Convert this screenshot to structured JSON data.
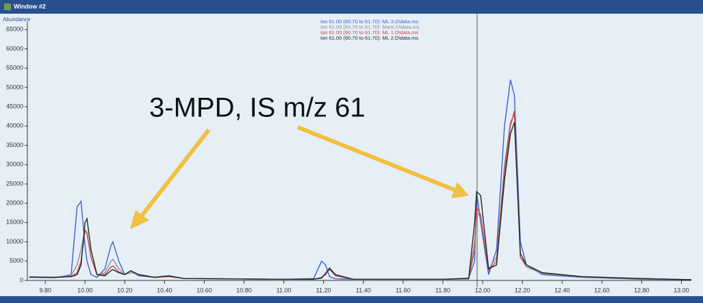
{
  "chart_data": {
    "type": "line",
    "window_title": "Window #2",
    "y_label": "Abundance",
    "annotation": "3-MPD, IS m/z 61",
    "x": [
      9.72,
      9.85,
      9.93,
      9.96,
      9.98,
      10.0,
      10.01,
      10.03,
      10.06,
      10.1,
      10.13,
      10.14,
      10.17,
      10.2,
      10.23,
      10.27,
      10.35,
      10.42,
      10.5,
      11.0,
      11.15,
      11.19,
      11.21,
      11.23,
      11.26,
      11.35,
      11.8,
      11.93,
      11.96,
      11.97,
      11.99,
      12.03,
      12.07,
      12.11,
      12.14,
      12.16,
      12.19,
      12.22,
      12.3,
      12.5,
      12.8,
      13.05
    ],
    "series": [
      {
        "name": "Ion 61.00 (60.70 to 61.70): ML 3.D\\data.ms",
        "color": "#3d5fd8",
        "values": [
          800,
          700,
          1500,
          19000,
          20500,
          9000,
          5000,
          1500,
          800,
          3000,
          9000,
          10000,
          5000,
          1500,
          2500,
          1200,
          800,
          1200,
          500,
          300,
          500,
          5000,
          4000,
          1000,
          400,
          300,
          300,
          600,
          5000,
          23000,
          15000,
          1500,
          8000,
          40000,
          52000,
          48000,
          10000,
          4000,
          1500,
          800,
          300,
          200
        ]
      },
      {
        "name": "Ion 61.00 (60.70 to 61.70): blanc.D\\data.ms",
        "color": "#8a8f98",
        "values": [
          900,
          800,
          1200,
          4000,
          8000,
          13000,
          12500,
          6000,
          1500,
          2000,
          5000,
          5500,
          3000,
          1500,
          2000,
          1500,
          800,
          1000,
          500,
          300,
          300,
          800,
          1500,
          2800,
          1200,
          300,
          300,
          500,
          10000,
          18000,
          16000,
          3000,
          6000,
          30000,
          41000,
          43000,
          6000,
          3500,
          1800,
          900,
          400,
          200
        ]
      },
      {
        "name": "Ion 61.00 (60.70 to 61.70): ML 1.D\\data.ms",
        "color": "#d0464a",
        "values": [
          900,
          800,
          1000,
          2000,
          5000,
          13000,
          12000,
          6000,
          1500,
          1500,
          3500,
          3800,
          2200,
          1500,
          2500,
          1500,
          800,
          1000,
          500,
          300,
          300,
          800,
          1500,
          3000,
          1200,
          300,
          300,
          400,
          8000,
          19000,
          17000,
          2500,
          5000,
          28000,
          40000,
          44000,
          6000,
          4000,
          2000,
          1000,
          500,
          200
        ]
      },
      {
        "name": "Ion 61.00 (60.70 to 61.70): ML 2.D\\data.ms",
        "color": "#1c2a22",
        "values": [
          900,
          800,
          1000,
          1500,
          4000,
          15000,
          16000,
          8000,
          1500,
          1200,
          2500,
          2800,
          2000,
          1500,
          2500,
          1500,
          800,
          1200,
          500,
          300,
          300,
          600,
          1800,
          3200,
          1500,
          300,
          300,
          500,
          15000,
          23000,
          22000,
          3000,
          4000,
          26000,
          38000,
          41000,
          7000,
          4000,
          2000,
          1000,
          500,
          200
        ]
      }
    ],
    "xlim": [
      9.71,
      13.05
    ],
    "ylim": [
      0,
      67000
    ],
    "xticks": [
      {
        "value": 9.8,
        "label": "9.80"
      },
      {
        "value": 10.0,
        "label": "10.00"
      },
      {
        "value": 10.2,
        "label": "10.20"
      },
      {
        "value": 10.4,
        "label": "10.40"
      },
      {
        "value": 10.6,
        "label": "10.60"
      },
      {
        "value": 10.8,
        "label": "10.80"
      },
      {
        "value": 11.0,
        "label": "11.00"
      },
      {
        "value": 11.2,
        "label": "11.20"
      },
      {
        "value": 11.4,
        "label": "11.40"
      },
      {
        "value": 11.6,
        "label": "11.60"
      },
      {
        "value": 11.8,
        "label": "11.80"
      },
      {
        "value": 12.0,
        "label": "12.00"
      },
      {
        "value": 12.2,
        "label": "12.20"
      },
      {
        "value": 12.4,
        "label": "12.40"
      },
      {
        "value": 12.6,
        "label": "12.60"
      },
      {
        "value": 12.8,
        "label": "12.80"
      },
      {
        "value": 13.0,
        "label": "13.00"
      }
    ],
    "yticks": [
      0,
      5000,
      10000,
      15000,
      20000,
      25000,
      30000,
      35000,
      40000,
      45000,
      50000,
      55000,
      60000,
      65000
    ]
  }
}
